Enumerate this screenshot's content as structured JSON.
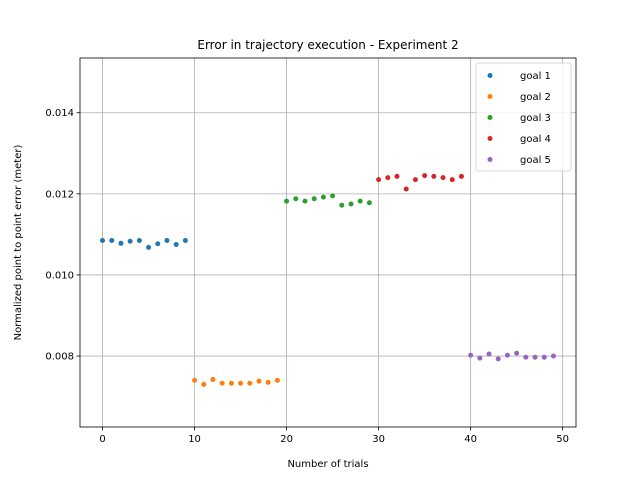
{
  "chart_data": {
    "type": "scatter",
    "title": "Error in trajectory execution - Experiment 2",
    "xlabel": "Number of trials",
    "ylabel": "Normalized point to point error (meter)",
    "xlim": [
      -2.45,
      51.45
    ],
    "ylim": [
      0.00625,
      0.01535
    ],
    "xticks": [
      0,
      10,
      20,
      30,
      40,
      50
    ],
    "yticks": [
      0.008,
      0.01,
      0.012,
      0.014
    ],
    "xtick_labels": [
      "0",
      "10",
      "20",
      "30",
      "40",
      "50"
    ],
    "ytick_labels": [
      "0.008",
      "0.010",
      "0.012",
      "0.014"
    ],
    "grid": true,
    "legend_position": "top-right",
    "series": [
      {
        "name": "goal 1",
        "color": "#1f77b4",
        "x": [
          0,
          1,
          2,
          3,
          4,
          5,
          6,
          7,
          8,
          9
        ],
        "y": [
          0.01085,
          0.01085,
          0.01078,
          0.01083,
          0.01085,
          0.01068,
          0.01077,
          0.01085,
          0.01075,
          0.01085
        ]
      },
      {
        "name": "goal 2",
        "color": "#ff7f0e",
        "x": [
          10,
          11,
          12,
          13,
          14,
          15,
          16,
          17,
          18,
          19
        ],
        "y": [
          0.0074,
          0.0073,
          0.00742,
          0.00733,
          0.00733,
          0.00733,
          0.00733,
          0.00738,
          0.00735,
          0.0074
        ]
      },
      {
        "name": "goal 3",
        "color": "#2ca02c",
        "x": [
          20,
          21,
          22,
          23,
          24,
          25,
          26,
          27,
          28,
          29
        ],
        "y": [
          0.01182,
          0.01188,
          0.01182,
          0.01188,
          0.01192,
          0.01195,
          0.01172,
          0.01175,
          0.01182,
          0.01178
        ]
      },
      {
        "name": "goal 4",
        "color": "#d62728",
        "x": [
          30,
          31,
          32,
          33,
          34,
          35,
          36,
          37,
          38,
          39
        ],
        "y": [
          0.01235,
          0.0124,
          0.01243,
          0.01212,
          0.01235,
          0.01245,
          0.01243,
          0.0124,
          0.01235,
          0.01243
        ]
      },
      {
        "name": "goal 5",
        "color": "#9467bd",
        "x": [
          40,
          41,
          42,
          43,
          44,
          45,
          46,
          47,
          48,
          49
        ],
        "y": [
          0.00802,
          0.00795,
          0.00805,
          0.00793,
          0.00802,
          0.00807,
          0.00797,
          0.00797,
          0.00797,
          0.008
        ]
      }
    ]
  }
}
